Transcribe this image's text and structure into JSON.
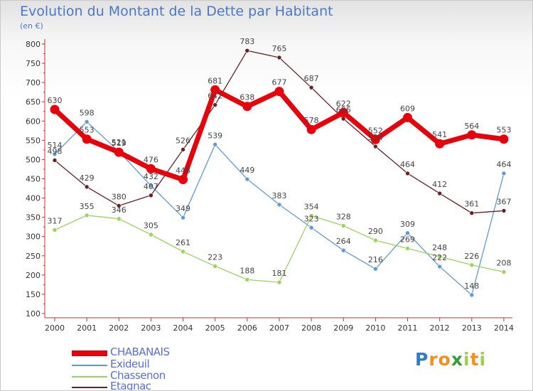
{
  "header": {
    "title": "Evolution du Montant de la Dette par Habitant",
    "unit": "(en €)"
  },
  "chart_data": {
    "type": "line",
    "title": "Evolution du Montant de la Dette par Habitant",
    "ylabel": "(en €)",
    "xlabel": "",
    "x": [
      "2000",
      "2001",
      "2002",
      "2003",
      "2004",
      "2005",
      "2006",
      "2007",
      "2008",
      "2009",
      "2010",
      "2011",
      "2012",
      "2013",
      "2014"
    ],
    "ylim": [
      100,
      800
    ],
    "yticks": [
      100,
      150,
      200,
      250,
      300,
      350,
      400,
      450,
      500,
      550,
      600,
      650,
      700,
      750,
      800
    ],
    "grid": false,
    "series": [
      {
        "name": "CHABANAIS",
        "color": "#e8000b",
        "values": [
          630,
          553,
          519,
          476,
          448,
          681,
          638,
          677,
          578,
          622,
          552,
          609,
          541,
          564,
          553
        ]
      },
      {
        "name": "Exideuil",
        "color": "#5e9bd6",
        "values": [
          514,
          598,
          521,
          432,
          349,
          539,
          449,
          383,
          323,
          264,
          216,
          309,
          222,
          148,
          464
        ]
      },
      {
        "name": "Chassenon",
        "color": "#99d55a",
        "values": [
          317,
          355,
          346,
          305,
          261,
          223,
          188,
          181,
          354,
          328,
          290,
          269,
          248,
          226,
          208
        ]
      },
      {
        "name": "Etagnac",
        "color": "#6b1e24",
        "values": [
          498,
          429,
          380,
          407,
          526,
          642,
          783,
          765,
          687,
          606,
          534,
          464,
          412,
          361,
          367
        ]
      }
    ]
  },
  "legend": {
    "items": [
      "CHABANAIS",
      "Exideuil",
      "Chassenon",
      "Etagnac"
    ]
  },
  "logo": {
    "letters": [
      "P",
      "r",
      "o",
      "x",
      "i",
      "t",
      "i"
    ],
    "colors": [
      "#2f7bd2",
      "#f0901e",
      "#f0901e",
      "#3a9a3a",
      "#9bd04a",
      "#f0901e",
      "#9bd04a"
    ]
  }
}
